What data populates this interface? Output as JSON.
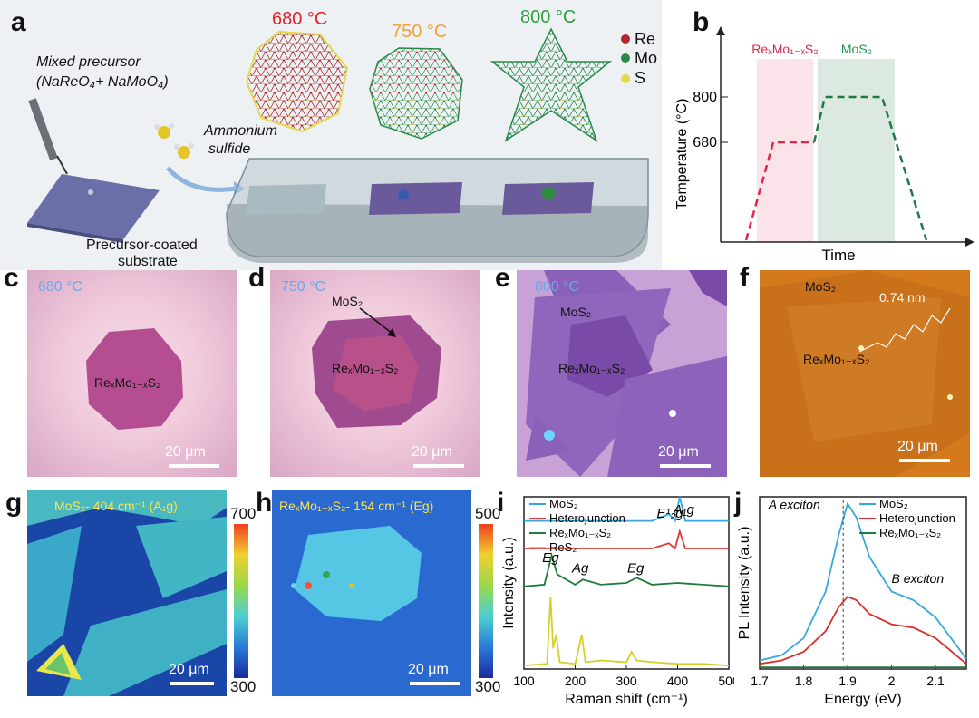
{
  "panels": {
    "a": {
      "label": "a",
      "temps": [
        "680 °C",
        "750 °C",
        "800 °C"
      ],
      "temp_colors": [
        "#e0242a",
        "#f0a23a",
        "#2e9e3e"
      ],
      "mixed_precursor": "Mixed precursor",
      "precursor_formula": "(NaReO₄+ NaMoO₄)",
      "ammonium_line1": "Ammonium",
      "ammonium_line2": "sulfide",
      "coated_line1": "Precursor-coated",
      "coated_line2": "substrate",
      "legend": [
        {
          "symbol": "Re",
          "color": "#b3282d"
        },
        {
          "symbol": "Mo",
          "color": "#2a8a4a"
        },
        {
          "symbol": "S",
          "color": "#e5d84a"
        }
      ]
    },
    "b": {
      "label": "b",
      "region1": "ReₓMo₁₋ₓS₂",
      "region2": "MoS₂",
      "ylabel": "Temperature (°C)",
      "xlabel": "Time",
      "ticks": [
        "800",
        "680"
      ]
    },
    "c": {
      "label": "c",
      "temp": "680 °C",
      "flake": "ReₓMo₁₋ₓS₂",
      "scale": "20 μm"
    },
    "d": {
      "label": "d",
      "temp": "750 °C",
      "arrow_label": "MoS₂",
      "flake": "ReₓMo₁₋ₓS₂",
      "scale": "20 μm"
    },
    "e": {
      "label": "e",
      "temp": "800 °C",
      "outer": "MoS₂",
      "flake": "ReₓMo₁₋ₓS₂",
      "scale": "20 μm"
    },
    "f": {
      "label": "f",
      "outer": "MoS₂",
      "height": "0.74 nm",
      "flake": "ReₓMo₁₋ₓS₂",
      "scale": "20 μm"
    },
    "g": {
      "label": "g",
      "title": "MoS₂- 404 cm⁻¹ (A₁g)",
      "cbar_max": "700",
      "cbar_min": "300",
      "scale": "20 μm"
    },
    "h": {
      "label": "h",
      "title": "ReₓMo₁₋ₓS₂- 154 cm⁻¹ (Eg)",
      "cbar_max": "500",
      "cbar_min": "300",
      "scale": "20 μm"
    },
    "i": {
      "label": "i",
      "peak_labels": [
        "E¹₂g",
        "A₁g",
        "Eg",
        "Ag",
        "Eg"
      ]
    },
    "j": {
      "label": "j",
      "a_exciton": "A exciton",
      "b_exciton": "B exciton"
    }
  },
  "chart_data": [
    {
      "type": "line",
      "panel": "b",
      "title": "",
      "xlabel": "Time",
      "ylabel": "Temperature (°C)",
      "yticks": [
        680,
        800
      ],
      "series": [
        {
          "name": "ReₓMo₁₋ₓS₂",
          "color": "#e0244a",
          "style": "dashed",
          "x": [
            0,
            1,
            2.3
          ],
          "y": [
            560,
            680,
            680
          ]
        },
        {
          "name": "MoS₂",
          "color": "#1e7a44",
          "style": "dashed",
          "x": [
            2.3,
            2.6,
            4.5,
            5.7
          ],
          "y": [
            680,
            800,
            800,
            560
          ]
        }
      ],
      "regions": [
        "ReₓMo₁₋ₓS₂",
        "MoS₂"
      ]
    },
    {
      "type": "line",
      "panel": "i",
      "title": "",
      "xlabel": "Raman shift (cm⁻¹)",
      "ylabel": "Intensity (a.u.)",
      "xlim": [
        100,
        500
      ],
      "xticks": [
        100,
        200,
        300,
        400,
        500
      ],
      "legend": [
        "MoS₂",
        "Heterojunction",
        "ReₓMo₁₋ₓS₂",
        "ReS₂"
      ],
      "series": [
        {
          "name": "MoS₂",
          "color": "#35a9dc",
          "x": [
            100,
            150,
            200,
            250,
            300,
            350,
            383,
            395,
            404,
            415,
            450,
            500
          ],
          "y": [
            0.86,
            0.86,
            0.86,
            0.86,
            0.86,
            0.86,
            0.9,
            0.86,
            1.0,
            0.86,
            0.86,
            0.86
          ]
        },
        {
          "name": "Heterojunction",
          "color": "#e03a36",
          "x": [
            100,
            150,
            200,
            250,
            300,
            350,
            383,
            395,
            404,
            415,
            450,
            500
          ],
          "y": [
            0.7,
            0.7,
            0.7,
            0.7,
            0.7,
            0.7,
            0.73,
            0.7,
            0.8,
            0.7,
            0.7,
            0.7
          ]
        },
        {
          "name": "ReₓMo₁₋ₓS₂",
          "color": "#1d7d3a",
          "x": [
            100,
            140,
            154,
            165,
            200,
            215,
            250,
            300,
            320,
            350,
            400,
            450,
            500
          ],
          "y": [
            0.48,
            0.49,
            0.66,
            0.55,
            0.49,
            0.52,
            0.49,
            0.5,
            0.53,
            0.49,
            0.5,
            0.49,
            0.48
          ]
        },
        {
          "name": "ReS₂",
          "color": "#d6cf2a",
          "x": [
            100,
            145,
            152,
            157,
            163,
            170,
            200,
            213,
            220,
            250,
            300,
            310,
            320,
            350,
            400,
            450,
            500
          ],
          "y": [
            0.02,
            0.03,
            0.42,
            0.12,
            0.2,
            0.04,
            0.03,
            0.2,
            0.04,
            0.05,
            0.04,
            0.1,
            0.05,
            0.04,
            0.03,
            0.03,
            0.02
          ]
        }
      ]
    },
    {
      "type": "line",
      "panel": "j",
      "title": "",
      "xlabel": "Energy (eV)",
      "ylabel": "PL Intensity (a.u.)",
      "xlim": [
        1.7,
        2.17
      ],
      "xticks": [
        1.7,
        1.8,
        1.9,
        2.0,
        2.1
      ],
      "legend": [
        "MoS₂",
        "Heterojunction",
        "ReₓMo₁₋ₓS₂"
      ],
      "series": [
        {
          "name": "MoS₂",
          "color": "#35a9dc",
          "x": [
            1.7,
            1.75,
            1.8,
            1.85,
            1.88,
            1.9,
            1.92,
            1.95,
            2.0,
            2.05,
            2.1,
            2.17
          ],
          "y": [
            0.05,
            0.08,
            0.18,
            0.45,
            0.78,
            0.96,
            0.88,
            0.65,
            0.45,
            0.4,
            0.3,
            0.06
          ]
        },
        {
          "name": "Heterojunction",
          "color": "#d9302c",
          "x": [
            1.7,
            1.75,
            1.8,
            1.85,
            1.88,
            1.9,
            1.92,
            1.95,
            2.0,
            2.05,
            2.1,
            2.17
          ],
          "y": [
            0.03,
            0.05,
            0.1,
            0.22,
            0.36,
            0.42,
            0.4,
            0.32,
            0.26,
            0.24,
            0.18,
            0.03
          ]
        },
        {
          "name": "ReₓMo₁₋ₓS₂",
          "color": "#1d7d3a",
          "x": [
            1.7,
            2.17
          ],
          "y": [
            0.01,
            0.01
          ]
        }
      ]
    }
  ]
}
